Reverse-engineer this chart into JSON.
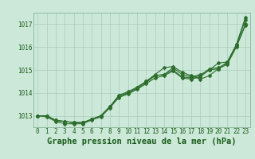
{
  "background_color": "#cce8d8",
  "grid_color": "#aaccbb",
  "line_color": "#2d6e2d",
  "title": "Graphe pression niveau de la mer (hPa)",
  "xlim": [
    -0.5,
    23.5
  ],
  "ylim": [
    1012.5,
    1017.5
  ],
  "yticks": [
    1013,
    1014,
    1015,
    1016,
    1017
  ],
  "xticks": [
    0,
    1,
    2,
    3,
    4,
    5,
    6,
    7,
    8,
    9,
    10,
    11,
    12,
    13,
    14,
    15,
    16,
    17,
    18,
    19,
    20,
    21,
    22,
    23
  ],
  "series": [
    [
      1013.0,
      1013.0,
      1012.8,
      1012.75,
      1012.7,
      1012.7,
      1012.85,
      1013.0,
      1013.4,
      1013.85,
      1014.0,
      1014.2,
      1014.5,
      1014.75,
      1014.8,
      1015.1,
      1014.8,
      1014.7,
      1014.8,
      1015.0,
      1015.3,
      1015.35,
      1016.1,
      1017.2
    ],
    [
      1013.0,
      1013.0,
      1012.8,
      1012.75,
      1012.7,
      1012.7,
      1012.85,
      1013.0,
      1013.4,
      1013.85,
      1014.0,
      1014.2,
      1014.45,
      1014.75,
      1014.8,
      1015.0,
      1014.7,
      1014.65,
      1014.75,
      1015.05,
      1015.1,
      1015.3,
      1016.05,
      1017.0
    ],
    [
      1013.0,
      1012.95,
      1012.75,
      1012.65,
      1012.65,
      1012.65,
      1012.82,
      1012.95,
      1013.35,
      1013.8,
      1013.95,
      1014.15,
      1014.4,
      1014.65,
      1014.75,
      1014.95,
      1014.65,
      1014.6,
      1014.7,
      1015.0,
      1015.05,
      1015.25,
      1016.0,
      1016.95
    ],
    [
      1013.0,
      1013.0,
      1012.8,
      1012.75,
      1012.7,
      1012.7,
      1012.85,
      1013.0,
      1013.4,
      1013.9,
      1014.05,
      1014.25,
      1014.5,
      1014.8,
      1015.1,
      1015.15,
      1014.9,
      1014.75,
      1014.6,
      1014.75,
      1015.05,
      1015.35,
      1016.1,
      1017.3
    ]
  ],
  "marker": "D",
  "markersize": 2.0,
  "linewidth": 0.8,
  "title_fontsize": 7.5,
  "tick_fontsize": 5.5,
  "title_color": "#1a5c1a",
  "tick_color": "#1a5c1a",
  "spine_color": "#7aaa8a"
}
